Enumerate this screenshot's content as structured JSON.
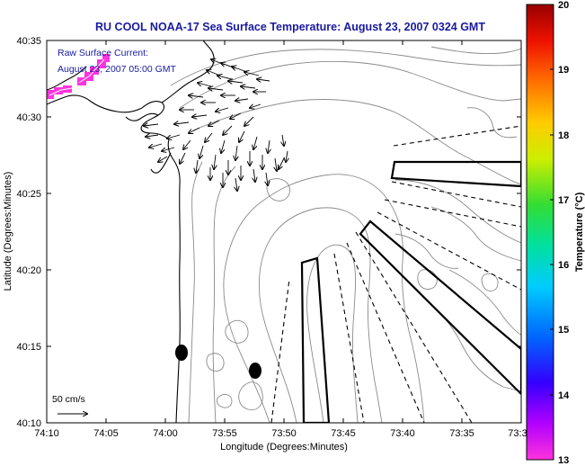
{
  "title": "RU COOL  NOAA-17  Sea Surface Temperature:  August 23, 2007 0324 GMT",
  "annotation": {
    "line1": "Raw Surface Current:",
    "line2": "August 23, 2007 05:00 GMT"
  },
  "x_axis": {
    "label": "Longitude (Degrees:Minutes)",
    "ticks": [
      "74:10",
      "74:05",
      "74:00",
      "73:55",
      "73:50",
      "73:45",
      "73:40",
      "73:35",
      "73:3"
    ]
  },
  "y_axis": {
    "label": "Latitude (Degrees:Minutes)",
    "ticks": [
      "40:35",
      "40:30",
      "40:25",
      "40:20",
      "40:15",
      "40:10"
    ]
  },
  "colorbar": {
    "label": "Temperature (°C)",
    "ticks": [
      "20",
      "19",
      "18",
      "17",
      "16",
      "15",
      "14",
      "13"
    ],
    "min": 13,
    "max": 20,
    "colors": [
      "#ff33dd",
      "#b000ff",
      "#3300ff",
      "#0066ff",
      "#00ccff",
      "#00e0a0",
      "#33dd33",
      "#ccee00",
      "#ffcc00",
      "#ff6600",
      "#ee1100",
      "#990000"
    ]
  },
  "scale_arrow_label": "50 cm/s"
}
